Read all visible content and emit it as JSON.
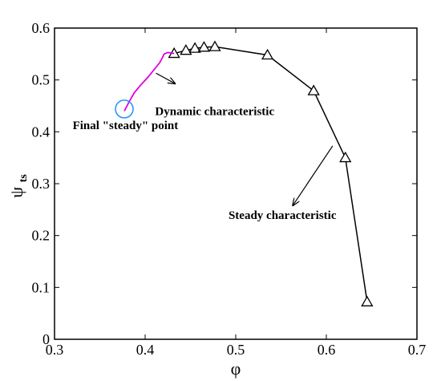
{
  "chart_data": {
    "type": "line",
    "xlabel": "φ",
    "ylabel": "ψ",
    "ylabel_subscript": "ts",
    "xlim": [
      0.3,
      0.7
    ],
    "ylim": [
      0,
      0.6
    ],
    "xticks": [
      "0.3",
      "0.4",
      "0.5",
      "0.6",
      "0.7"
    ],
    "yticks": [
      "0",
      "0.1",
      "0.2",
      "0.3",
      "0.4",
      "0.5",
      "0.6"
    ],
    "grid": false,
    "series": [
      {
        "label": "Steady characteristic",
        "color": "#000000",
        "marker": "triangle",
        "x": [
          0.432,
          0.445,
          0.455,
          0.465,
          0.477,
          0.535,
          0.586,
          0.621,
          0.645
        ],
        "y": [
          0.551,
          0.557,
          0.561,
          0.563,
          0.564,
          0.548,
          0.479,
          0.35,
          0.072
        ]
      },
      {
        "label": "Dynamic characteristic",
        "color": "#e000e0",
        "marker": "none",
        "x": [
          0.377,
          0.383,
          0.388,
          0.395,
          0.403,
          0.41,
          0.416,
          0.419,
          0.421,
          0.425,
          0.432
        ],
        "y": [
          0.44,
          0.46,
          0.475,
          0.49,
          0.505,
          0.52,
          0.533,
          0.543,
          0.55,
          0.553,
          0.551
        ]
      }
    ],
    "annotations": [
      {
        "text": "Dynamic characteristic",
        "at": [
          0.411,
          0.432
        ],
        "arrow_from": [
          0.412,
          0.513
        ],
        "arrow_to": [
          0.433,
          0.493
        ]
      },
      {
        "text": "Final \"steady\" point",
        "at": [
          0.32,
          0.405
        ],
        "circle_at": [
          0.377,
          0.444
        ]
      },
      {
        "text": "Steady characteristic",
        "at": [
          0.492,
          0.232
        ],
        "arrow_from": [
          0.607,
          0.373
        ],
        "arrow_to": [
          0.563,
          0.258
        ]
      }
    ],
    "final_point_color": "#1e90ff"
  }
}
